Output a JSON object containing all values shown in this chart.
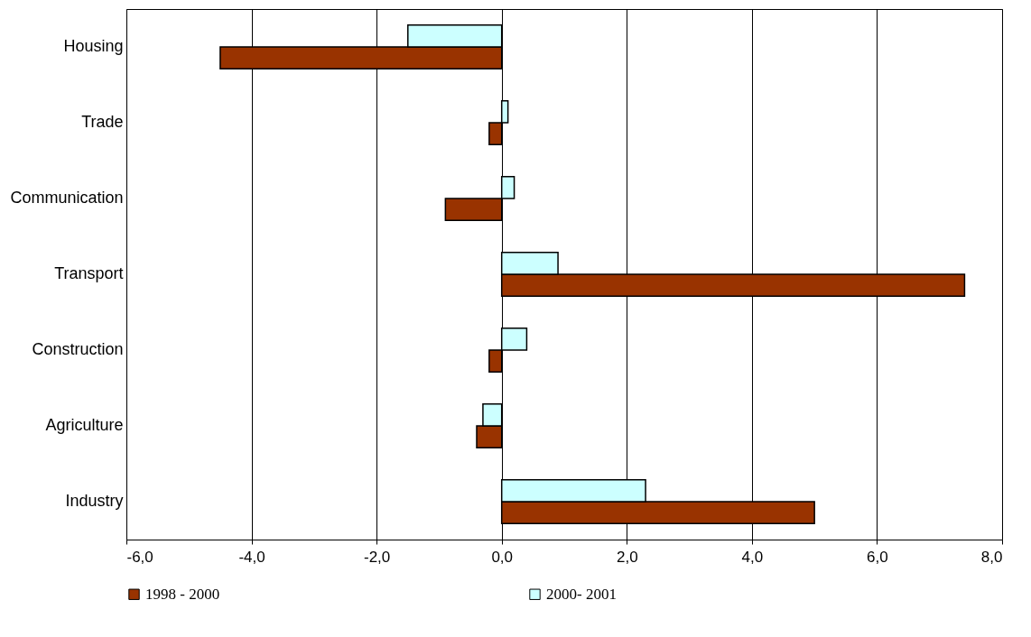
{
  "chart_data": {
    "type": "bar",
    "orientation": "horizontal",
    "categories": [
      "Housing",
      "Trade",
      "Communication",
      "Transport",
      "Construction",
      "Agriculture",
      "Industry"
    ],
    "series": [
      {
        "name": "1998 - 2000",
        "color": "#993300",
        "values": [
          -4.5,
          -0.2,
          -0.9,
          7.4,
          -0.2,
          -0.4,
          5.0
        ]
      },
      {
        "name": "2000- 2001",
        "color": "#ccffff",
        "values": [
          -1.5,
          0.1,
          0.2,
          0.9,
          0.4,
          -0.3,
          2.3
        ]
      }
    ],
    "xlim": [
      -6,
      8
    ],
    "xticks": [
      {
        "value": -6,
        "label": "-6,0"
      },
      {
        "value": -4,
        "label": "-4,0"
      },
      {
        "value": -2,
        "label": "-2,0"
      },
      {
        "value": 0,
        "label": "0,0"
      },
      {
        "value": 2,
        "label": "2,0"
      },
      {
        "value": 4,
        "label": "4,0"
      },
      {
        "value": 6,
        "label": "6,0"
      },
      {
        "value": 8,
        "label": "8,0"
      }
    ],
    "grid": "x",
    "legend": "bottom"
  }
}
